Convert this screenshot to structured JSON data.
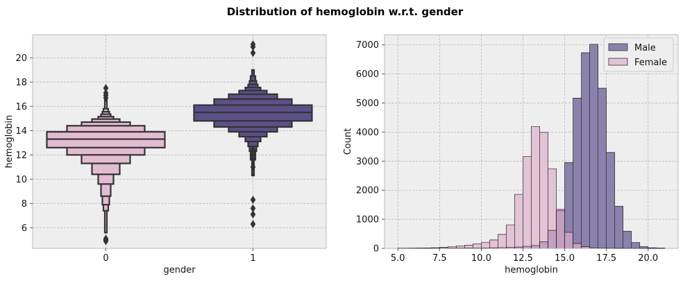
{
  "suptitle": "Distribution of hemoglobin w.r.t. gender",
  "colors": {
    "panel_bg": "#eeeeee",
    "grid": "#b0b0b0",
    "female_box": "#e2bcd1",
    "male_box": "#5c5089",
    "line": "#333333",
    "male_hist": "#8a82ac",
    "female_hist": "#e3c3d6",
    "overlap_hist": "#c49fc1"
  },
  "chart_data": [
    {
      "type": "boxen",
      "xlabel": "gender",
      "ylabel": "hemoglobin",
      "categories": [
        "0",
        "1"
      ],
      "ylim": [
        4.3,
        21.9
      ],
      "yticks": [
        6,
        8,
        10,
        12,
        14,
        16,
        18,
        20
      ],
      "grid": true,
      "groups": [
        {
          "category": "0",
          "median": 13.3,
          "boxes": [
            {
              "lo": 12.6,
              "hi": 13.9
            },
            {
              "lo": 12.0,
              "hi": 14.4
            },
            {
              "lo": 11.3,
              "hi": 14.7
            },
            {
              "lo": 10.4,
              "hi": 14.95
            },
            {
              "lo": 9.6,
              "hi": 15.15
            },
            {
              "lo": 8.6,
              "hi": 15.35
            },
            {
              "lo": 7.9,
              "hi": 15.55
            },
            {
              "lo": 7.4,
              "hi": 15.8
            },
            {
              "lo": 5.6,
              "hi": 16.6
            }
          ],
          "outliers": [
            5.0,
            4.9,
            5.1,
            16.7,
            16.9,
            17.1,
            17.5
          ]
        },
        {
          "category": "1",
          "median": 15.5,
          "boxes": [
            {
              "lo": 14.8,
              "hi": 16.1
            },
            {
              "lo": 14.3,
              "hi": 16.6
            },
            {
              "lo": 13.9,
              "hi": 17.0
            },
            {
              "lo": 13.5,
              "hi": 17.3
            },
            {
              "lo": 13.1,
              "hi": 17.55
            },
            {
              "lo": 12.7,
              "hi": 17.8
            },
            {
              "lo": 12.3,
              "hi": 18.1
            },
            {
              "lo": 11.6,
              "hi": 18.5
            },
            {
              "lo": 10.3,
              "hi": 19.0
            }
          ],
          "outliers": [
            6.3,
            7.1,
            7.6,
            8.3,
            11.0,
            11.6,
            12.0,
            12.4,
            20.4,
            20.9,
            21.1
          ]
        }
      ]
    },
    {
      "type": "histogram",
      "xlabel": "hemoglobin",
      "ylabel": "Count",
      "xlim": [
        4.2,
        21.8
      ],
      "ylim": [
        0,
        7350
      ],
      "xticks": [
        5.0,
        7.5,
        10.0,
        12.5,
        15.0,
        17.5,
        20.0
      ],
      "xtick_labels": [
        "5.0",
        "7.5",
        "10.0",
        "12.5",
        "15.0",
        "17.5",
        "20.0"
      ],
      "yticks": [
        0,
        1000,
        2000,
        3000,
        4000,
        5000,
        6000,
        7000
      ],
      "grid": true,
      "legend": "top-right",
      "bin_start": 5.0,
      "bin_width": 0.5,
      "series": [
        {
          "name": "Male",
          "values": [
            5,
            5,
            5,
            5,
            8,
            8,
            10,
            10,
            12,
            14,
            16,
            20,
            25,
            30,
            45,
            70,
            100,
            230,
            620,
            1300,
            2950,
            5170,
            6730,
            7020,
            5510,
            3300,
            1450,
            590,
            200,
            60,
            20,
            12
          ]
        },
        {
          "name": "Female",
          "values": [
            8,
            10,
            12,
            15,
            20,
            35,
            55,
            85,
            110,
            160,
            210,
            290,
            480,
            810,
            1860,
            3160,
            4190,
            3990,
            2740,
            1350,
            550,
            170,
            60,
            20,
            10,
            5,
            3,
            2,
            1,
            0,
            0,
            0
          ]
        }
      ]
    }
  ]
}
